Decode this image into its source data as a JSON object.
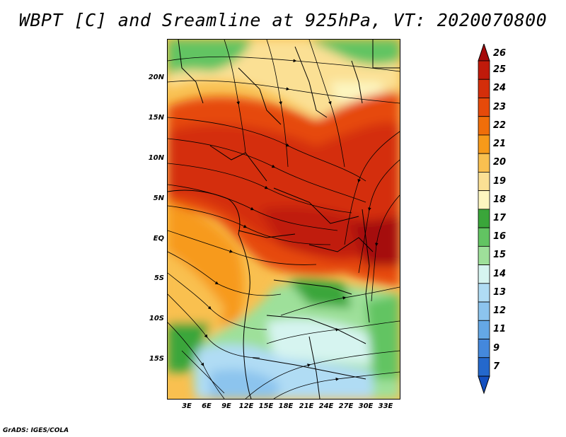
{
  "title": "WBPT [C] and Sreamline at 925hPa, VT: 2020070800",
  "footer": "GrADS: IGES/COLA",
  "lat_labels": [
    "20N",
    "15N",
    "10N",
    "5N",
    "EQ",
    "5S",
    "10S",
    "15S"
  ],
  "lon_labels": [
    "3E",
    "6E",
    "9E",
    "12E",
    "15E",
    "18E",
    "21E",
    "24E",
    "27E",
    "30E",
    "33E"
  ],
  "colorbar": {
    "labels": [
      "26",
      "25",
      "24",
      "23",
      "22",
      "21",
      "20",
      "19",
      "18",
      "17",
      "16",
      "15",
      "14",
      "13",
      "12",
      "11",
      "9",
      "7"
    ],
    "colors": [
      "#a50a0a",
      "#c01a0a",
      "#d42e0a",
      "#e64a0a",
      "#f06e0a",
      "#f79a1a",
      "#f9c050",
      "#fbe094",
      "#fdf6c0",
      "#3aa63a",
      "#62c462",
      "#9ee09a",
      "#d6f4f0",
      "#b0dcf4",
      "#8cc4ee",
      "#64a8e6",
      "#4488dc",
      "#2468cc",
      "#1450c0"
    ]
  }
}
